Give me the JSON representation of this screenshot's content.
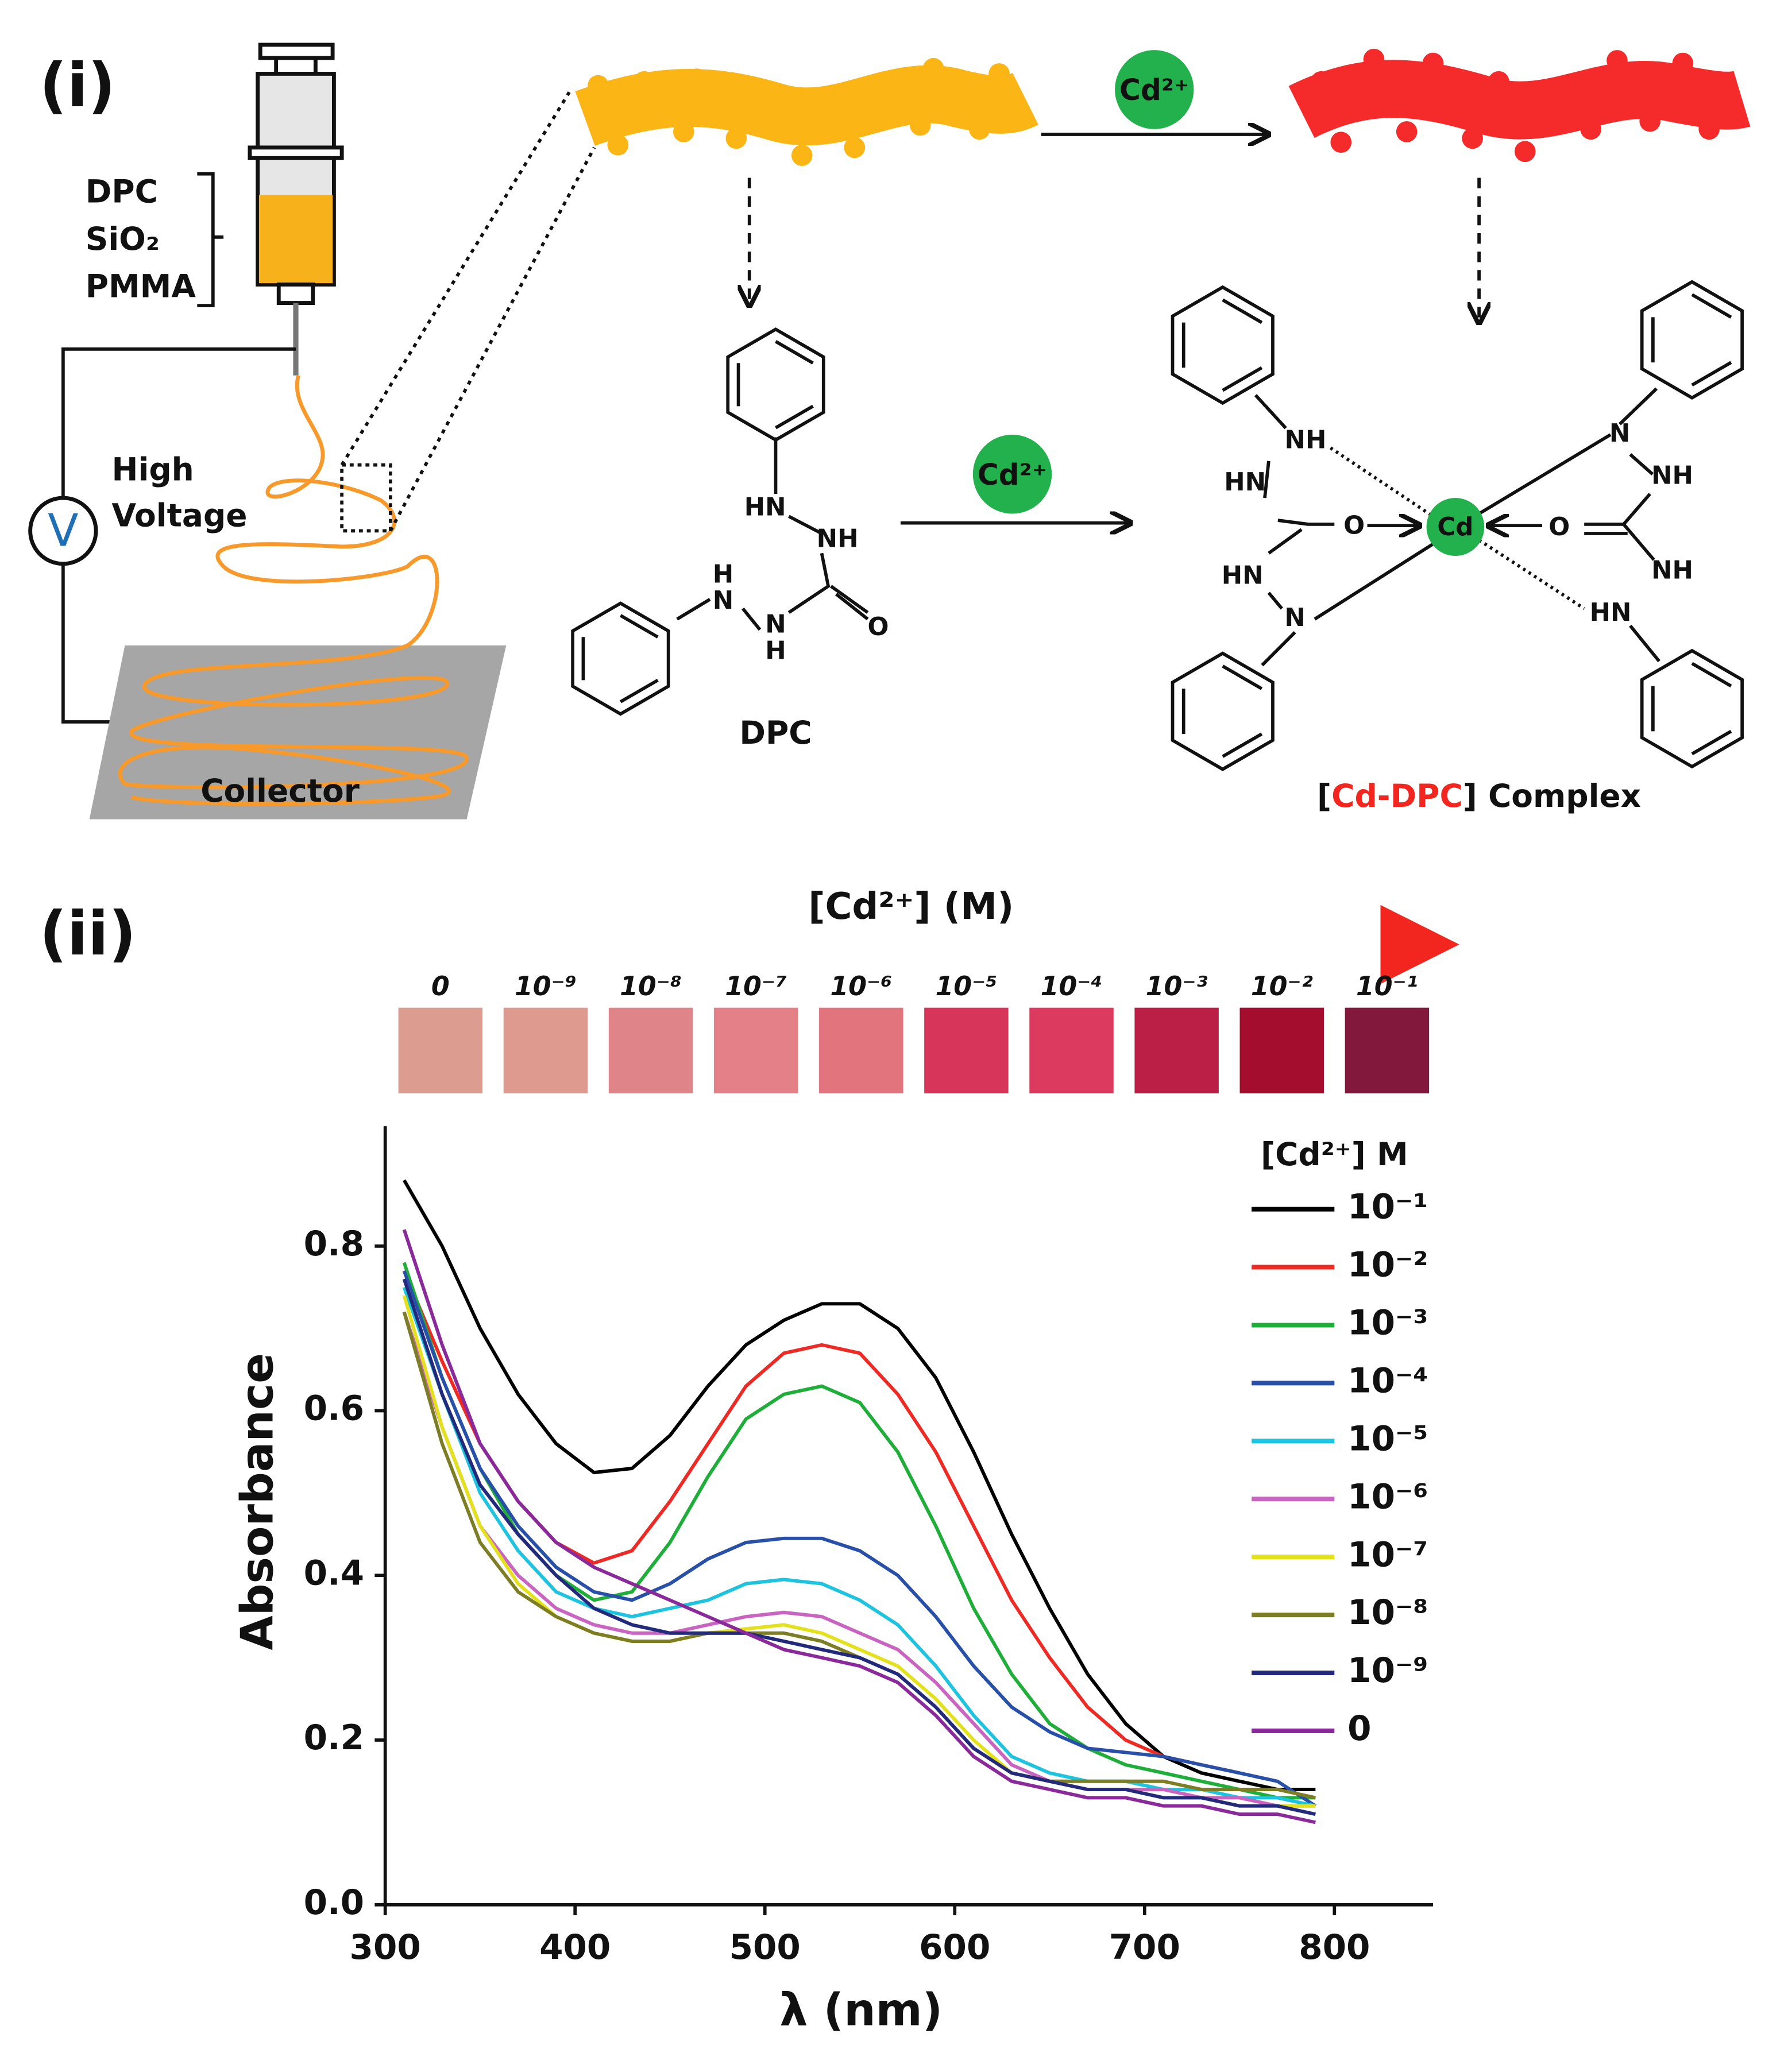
{
  "panel_labels": [
    "(i)",
    "(ii)"
  ],
  "electrospinning": {
    "components": [
      "DPC",
      "SiO₂",
      "PMMA"
    ],
    "voltage_label": [
      "High",
      "Voltage"
    ],
    "voltmeter": "V",
    "collector": "Collector"
  },
  "reaction": {
    "ion_top": "Cd²⁺",
    "ion_bottom": "Cd²⁺",
    "dpc_atoms": [
      "HN",
      "NH",
      "H",
      "N",
      "N",
      "H",
      "O"
    ],
    "dpc_name": "DPC",
    "complex_atoms": [
      "NH",
      "HN",
      "O",
      "Cd",
      "O",
      "HN",
      "N",
      "N",
      "NH",
      "NH",
      "HN"
    ],
    "complex_name": [
      "[",
      "Cd-DPC",
      "] Complex"
    ]
  },
  "color_scale": {
    "title": "[Cd²⁺] (M)",
    "labels": [
      "0",
      "10⁻⁹",
      "10⁻⁸",
      "10⁻⁷",
      "10⁻⁶",
      "10⁻⁵",
      "10⁻⁴",
      "10⁻³",
      "10⁻²",
      "10⁻¹"
    ],
    "swatch_colors": [
      "#dc9d90",
      "#df9a8f",
      "#df8489",
      "#e48088",
      "#e2747e",
      "#d8355a",
      "#dc3b5f",
      "#bb1f46",
      "#a50d2e",
      "#82193c"
    ]
  },
  "chart_data": {
    "type": "line",
    "x_label": "λ (nm)",
    "y_label": "Absorbance",
    "legend_title": "[Cd²⁺] M",
    "legend": "upper right",
    "x": [
      310,
      330,
      350,
      370,
      390,
      410,
      430,
      450,
      470,
      490,
      510,
      530,
      550,
      570,
      590,
      610,
      630,
      650,
      670,
      690,
      710,
      730,
      750,
      770,
      790
    ],
    "xlim": [
      300,
      850
    ],
    "ylim": [
      0,
      0.95
    ],
    "xticks": [
      300,
      400,
      500,
      600,
      700,
      800
    ],
    "yticks": [
      {
        "value": 0,
        "label": "0.0"
      },
      0.2,
      0.4,
      0.6,
      0.8
    ],
    "series": [
      {
        "name": "10⁻¹",
        "color": "#000000",
        "values": [
          0.88,
          0.8,
          0.7,
          0.62,
          0.56,
          0.525,
          0.53,
          0.57,
          0.63,
          0.68,
          0.71,
          0.73,
          0.73,
          0.7,
          0.64,
          0.55,
          0.45,
          0.36,
          0.28,
          0.22,
          0.18,
          0.16,
          0.15,
          0.14,
          0.14
        ]
      },
      {
        "name": "10⁻²",
        "color": "#ee2a24",
        "values": [
          0.77,
          0.66,
          0.56,
          0.49,
          0.44,
          0.415,
          0.43,
          0.49,
          0.56,
          0.63,
          0.67,
          0.68,
          0.67,
          0.62,
          0.55,
          0.46,
          0.37,
          0.3,
          0.24,
          0.2,
          0.18,
          0.17,
          0.16,
          null,
          null
        ]
      },
      {
        "name": "10⁻³",
        "color": "#1fae3a",
        "values": [
          0.78,
          0.64,
          0.53,
          0.45,
          0.4,
          0.37,
          0.38,
          0.44,
          0.52,
          0.59,
          0.62,
          0.63,
          0.61,
          0.55,
          0.46,
          0.36,
          0.28,
          0.22,
          0.19,
          0.17,
          0.16,
          0.15,
          0.14,
          0.13,
          0.13
        ]
      },
      {
        "name": "10⁻⁴",
        "color": "#2850a8",
        "values": [
          0.77,
          0.64,
          0.53,
          0.46,
          0.41,
          0.38,
          0.37,
          0.39,
          0.42,
          0.44,
          0.445,
          0.445,
          0.43,
          0.4,
          0.35,
          0.29,
          0.24,
          0.21,
          0.19,
          0.185,
          0.18,
          0.17,
          0.16,
          0.15,
          0.12
        ]
      },
      {
        "name": "10⁻⁵",
        "color": "#1ec3e0",
        "values": [
          0.75,
          0.62,
          0.5,
          0.43,
          0.38,
          0.36,
          0.35,
          0.36,
          0.37,
          0.39,
          0.395,
          0.39,
          0.37,
          0.34,
          0.29,
          0.23,
          0.18,
          0.16,
          0.15,
          0.15,
          0.14,
          0.14,
          0.13,
          0.13,
          0.12
        ]
      },
      {
        "name": "10⁻⁶",
        "color": "#c964c0",
        "values": [
          0.72,
          0.58,
          0.46,
          0.4,
          0.36,
          0.34,
          0.33,
          0.33,
          0.34,
          0.35,
          0.355,
          0.35,
          0.33,
          0.31,
          0.27,
          0.22,
          0.17,
          0.15,
          0.14,
          0.14,
          0.14,
          0.13,
          0.13,
          0.12,
          0.12
        ]
      },
      {
        "name": "10⁻⁷",
        "color": "#e3e01c",
        "values": [
          0.74,
          0.58,
          0.46,
          0.39,
          0.35,
          0.33,
          0.32,
          0.32,
          0.33,
          0.335,
          0.34,
          0.33,
          0.31,
          0.29,
          0.25,
          0.2,
          0.16,
          0.15,
          0.14,
          0.14,
          0.13,
          0.13,
          0.12,
          0.12,
          0.12
        ]
      },
      {
        "name": "10⁻⁸",
        "color": "#7d7d24",
        "values": [
          0.72,
          0.56,
          0.44,
          0.38,
          0.35,
          0.33,
          0.32,
          0.32,
          0.33,
          0.33,
          0.33,
          0.32,
          0.3,
          0.28,
          0.24,
          0.19,
          0.16,
          0.15,
          0.15,
          0.15,
          0.15,
          0.14,
          0.14,
          0.14,
          0.13
        ]
      },
      {
        "name": "10⁻⁹",
        "color": "#232a7c",
        "values": [
          0.76,
          0.62,
          0.51,
          0.45,
          0.4,
          0.36,
          0.34,
          0.33,
          0.33,
          0.33,
          0.32,
          0.31,
          0.3,
          0.28,
          0.24,
          0.19,
          0.16,
          0.15,
          0.14,
          0.14,
          0.13,
          0.13,
          0.12,
          0.12,
          0.11
        ]
      },
      {
        "name": "0",
        "color": "#8a2a9a",
        "values": [
          0.82,
          0.68,
          0.56,
          0.49,
          0.44,
          0.41,
          0.39,
          0.37,
          0.35,
          0.33,
          0.31,
          0.3,
          0.29,
          0.27,
          0.23,
          0.18,
          0.15,
          0.14,
          0.13,
          0.13,
          0.12,
          0.12,
          0.11,
          0.11,
          0.1
        ]
      }
    ]
  }
}
